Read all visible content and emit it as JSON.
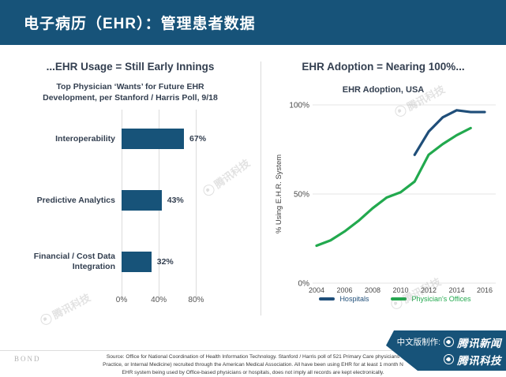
{
  "colors": {
    "accent": "#175379",
    "hospitals": "#1F4E79",
    "physician_offices": "#22A94E",
    "grid": "#E4E4E4"
  },
  "header": {
    "title": "电子病历（EHR）：管理患者数据"
  },
  "left_panel": {
    "heading": "...EHR Usage = Still Early Innings"
  },
  "right_panel": {
    "heading": "EHR Adoption = Nearing 100%..."
  },
  "chart_data": [
    {
      "type": "bar",
      "orientation": "horizontal",
      "title": "Top Physician ‘Wants’ for Future EHR Development, per Stanford / Harris Poll, 9/18",
      "title_lines": [
        "Top Physician ‘Wants’ for Future EHR",
        "Development, per Stanford / Harris Poll, 9/18"
      ],
      "categories": [
        "Interoperability",
        "Predictive Analytics",
        "Financial / Cost Data Integration"
      ],
      "values": [
        67,
        43,
        32
      ],
      "value_labels": [
        "67%",
        "43%",
        "32%"
      ],
      "xlim": [
        0,
        80
      ],
      "x_tick_values": [
        0,
        40,
        80
      ],
      "x_tick_labels": [
        "0%",
        "40%",
        "80%"
      ],
      "bar_color": "#175379",
      "grid": true
    },
    {
      "type": "line",
      "title": "EHR Adoption, USA",
      "ylabel": "% Using E.H.R. System",
      "ylim": [
        0,
        100
      ],
      "xlim": [
        2003.5,
        2016.5
      ],
      "x_tick_values": [
        2004,
        2006,
        2008,
        2010,
        2012,
        2014,
        2016
      ],
      "y_tick_values": [
        100,
        50,
        0
      ],
      "y_tick_labels": [
        "100%",
        "50%",
        "0%"
      ],
      "grid": true,
      "legend_position": "bottom",
      "series": [
        {
          "name": "Hospitals",
          "color": "#1F4E79",
          "x": [
            2011,
            2012,
            2013,
            2014,
            2015,
            2016
          ],
          "values": [
            72,
            85,
            93,
            97,
            96,
            96
          ]
        },
        {
          "name": "Physician's Offices",
          "color": "#22A94E",
          "x": [
            2004,
            2005,
            2006,
            2007,
            2008,
            2009,
            2010,
            2011,
            2012,
            2013,
            2014,
            2015
          ],
          "values": [
            21,
            24,
            29,
            35,
            42,
            48,
            51,
            57,
            72,
            78,
            83,
            87
          ]
        }
      ]
    }
  ],
  "watermark": {
    "text": "腾讯科技"
  },
  "footer": {
    "logo": "BOND",
    "source_lines": [
      "Source: Office for National Coordination of Health Information Technology.  Stanford / Harris poll of 521 Primary Care physicians",
      "Practice, or Internal Medicine) recruited through the American Medical Association.  All have been using EHR for at least 1 month N",
      "EHR system being used by Office-based physicians or hospitals, does not imply all records are kept electronically."
    ]
  },
  "badge": {
    "prefix": "中文版制作:",
    "line1": "腾讯新闻",
    "line2": "腾讯科技"
  }
}
